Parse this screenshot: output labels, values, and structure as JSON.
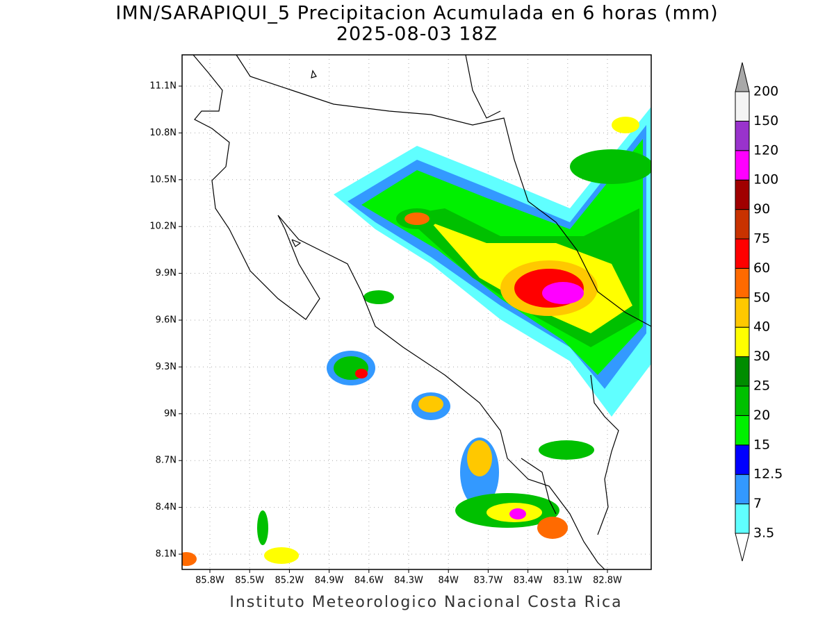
{
  "title": "IMN/SARAPIQUI_5 Precipitacion Acumulada en 6 horas (mm)",
  "subtitle": "2025-08-03 18Z",
  "map": {
    "lat_labels": [
      "11.1N",
      "10.8N",
      "10.5N",
      "10.2N",
      "9.9N",
      "9.6N",
      "9.3N",
      "9N",
      "8.7N",
      "8.4N",
      "8.1N"
    ],
    "lon_labels": [
      "85.8W",
      "85.5W",
      "85.2W",
      "84.9W",
      "84.6W",
      "84.3W",
      "84W",
      "83.7W",
      "83.4W",
      "83.1W",
      "82.8W"
    ]
  },
  "colorbar": {
    "levels": [
      "3.5",
      "7",
      "12.5",
      "15",
      "20",
      "25",
      "30",
      "40",
      "50",
      "60",
      "75",
      "90",
      "100",
      "120",
      "150",
      "200"
    ],
    "colors": [
      "#ffffff",
      "#60ffff",
      "#3399ff",
      "#0000ff",
      "#00f000",
      "#00c000",
      "#008c00",
      "#ffff00",
      "#ffc800",
      "#ff6a00",
      "#ff0000",
      "#c83200",
      "#a00000",
      "#ff00ff",
      "#9933cc",
      "#f4f4f4",
      "#a8a8a8"
    ]
  },
  "footer": "Instituto Meteorologico Nacional Costa Rica"
}
